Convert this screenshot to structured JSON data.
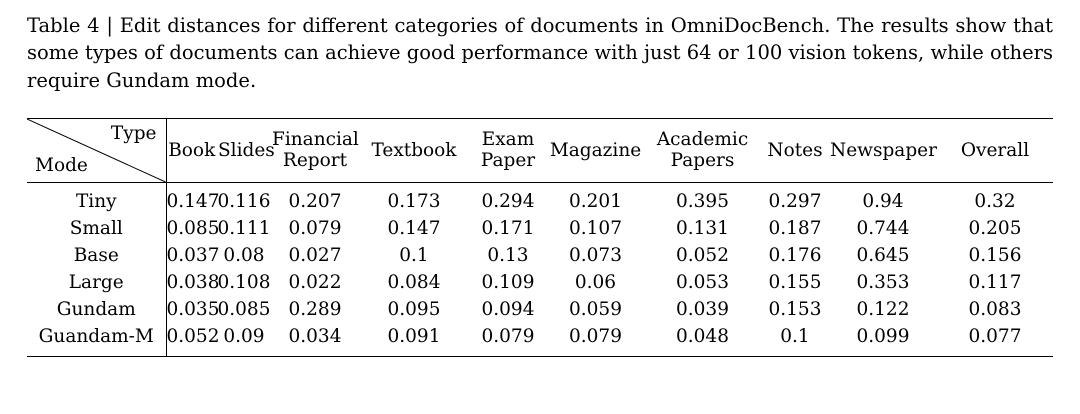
{
  "caption": {
    "text": "Table 4 | Edit distances for different categories of documents in OmniDocBench. The results show that some types of documents can achieve good performance with just 64 or 100 vision tokens, while others require Gundam mode."
  },
  "table": {
    "corner": {
      "top_right": "Type",
      "bottom_left": "Mode"
    },
    "columns": [
      "Book",
      "Slides",
      "Financial Report",
      "Textbook",
      "Exam Paper",
      "Magazine",
      "Academic Papers",
      "Notes",
      "Newspaper",
      "Overall"
    ],
    "rows": [
      {
        "mode": "Tiny",
        "values": [
          "0.147",
          "0.116",
          "0.207",
          "0.173",
          "0.294",
          "0.201",
          "0.395",
          "0.297",
          "0.94",
          "0.32"
        ]
      },
      {
        "mode": "Small",
        "values": [
          "0.085",
          "0.111",
          "0.079",
          "0.147",
          "0.171",
          "0.107",
          "0.131",
          "0.187",
          "0.744",
          "0.205"
        ]
      },
      {
        "mode": "Base",
        "values": [
          "0.037",
          "0.08",
          "0.027",
          "0.1",
          "0.13",
          "0.073",
          "0.052",
          "0.176",
          "0.645",
          "0.156"
        ]
      },
      {
        "mode": "Large",
        "values": [
          "0.038",
          "0.108",
          "0.022",
          "0.084",
          "0.109",
          "0.06",
          "0.053",
          "0.155",
          "0.353",
          "0.117"
        ]
      },
      {
        "mode": "Gundam",
        "values": [
          "0.035",
          "0.085",
          "0.289",
          "0.095",
          "0.094",
          "0.059",
          "0.039",
          "0.153",
          "0.122",
          "0.083"
        ]
      },
      {
        "mode": "Guandam-M",
        "values": [
          "0.052",
          "0.09",
          "0.034",
          "0.091",
          "0.079",
          "0.079",
          "0.048",
          "0.1",
          "0.099",
          "0.077"
        ]
      }
    ]
  }
}
